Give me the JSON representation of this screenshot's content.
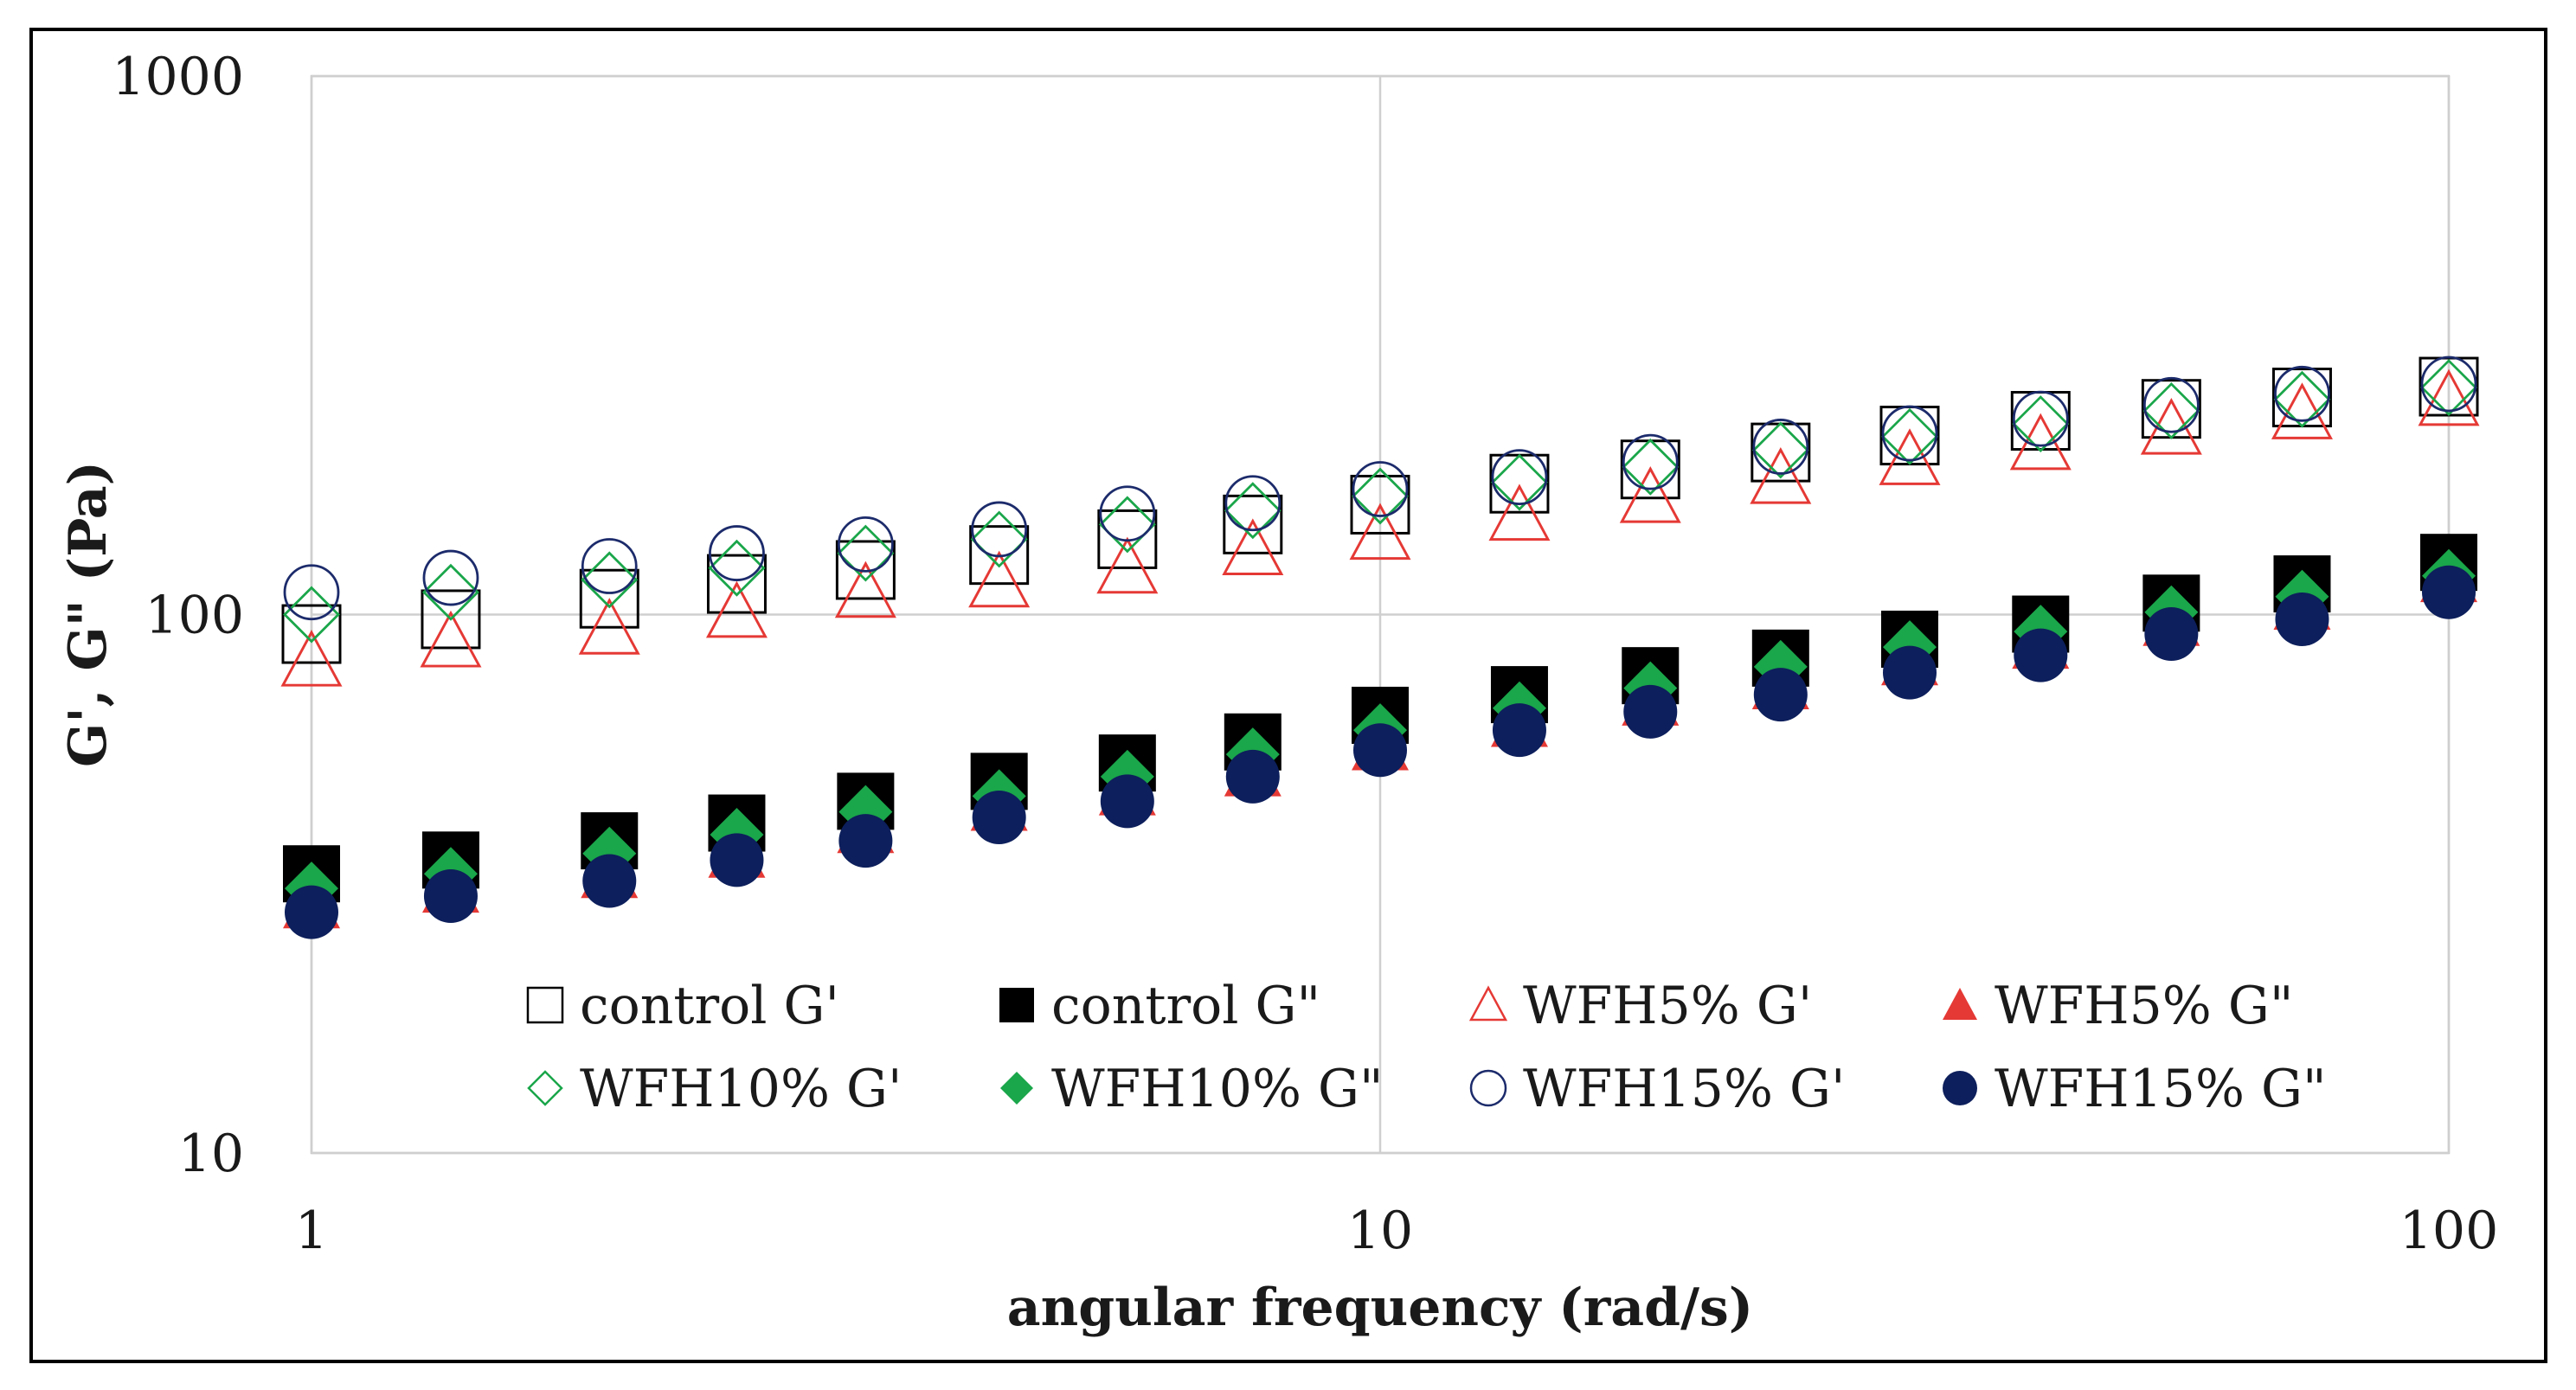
{
  "chart_data": {
    "type": "scatter",
    "title": "",
    "xlabel": "angular frequency (rad/s)",
    "ylabel": "G', G\" (Pa)",
    "xscale": "log",
    "yscale": "log",
    "xlim": [
      1,
      100
    ],
    "ylim": [
      10,
      1000
    ],
    "x_ticks": [
      {
        "value": 1,
        "label": "1"
      },
      {
        "value": 10,
        "label": "10"
      },
      {
        "value": 100,
        "label": "100"
      }
    ],
    "y_ticks": [
      {
        "value": 10,
        "label": "10"
      },
      {
        "value": 100,
        "label": "100"
      },
      {
        "value": 1000,
        "label": "1000"
      }
    ],
    "grid": true,
    "legend": "bottom",
    "x": [
      1.0,
      1.35,
      1.9,
      2.5,
      3.3,
      4.4,
      5.8,
      7.6,
      10.0,
      13.5,
      17.9,
      23.7,
      31.3,
      41.5,
      55.0,
      72.9,
      100.0
    ],
    "series": [
      {
        "name": "control G'",
        "marker": "open-square",
        "color": "#000000",
        "values": [
          92,
          98,
          107,
          114,
          121,
          129,
          138,
          147,
          160,
          175,
          186,
          200,
          215,
          229,
          241,
          253,
          265
        ]
      },
      {
        "name": "control G\"",
        "marker": "filled-square",
        "color": "#000000",
        "values": [
          33,
          35,
          38,
          41,
          45,
          49,
          53,
          58,
          65,
          71,
          77,
          83,
          90,
          96,
          105,
          114,
          125
        ]
      },
      {
        "name": "WFH5% G'",
        "marker": "open-triangle",
        "color": "#e53935",
        "values": [
          82,
          89,
          94,
          101,
          110,
          115,
          122,
          132,
          141,
          153,
          165,
          179,
          194,
          207,
          221,
          236,
          250
        ]
      },
      {
        "name": "WFH5% G\"",
        "marker": "filled-triangle",
        "color": "#e53935",
        "values": [
          29,
          31,
          33,
          36,
          40,
          44,
          47,
          51,
          57,
          63,
          69,
          74,
          82,
          88,
          97,
          104,
          117
        ]
      },
      {
        "name": "WFH10% G'",
        "marker": "open-diamond",
        "color": "#1aa64a",
        "values": [
          100,
          110,
          116,
          122,
          130,
          138,
          147,
          156,
          166,
          176,
          188,
          202,
          214,
          226,
          239,
          251,
          264
        ]
      },
      {
        "name": "WFH10% G\"",
        "marker": "filled-diamond",
        "color": "#1aa64a",
        "values": [
          31,
          33,
          36,
          39,
          43,
          46,
          50,
          55,
          61,
          67,
          73,
          80,
          87,
          93,
          101,
          108,
          118
        ]
      },
      {
        "name": "WFH15% G'",
        "marker": "open-circle",
        "color": "#1c2b6b",
        "values": [
          110,
          117,
          123,
          130,
          135,
          144,
          154,
          161,
          171,
          180,
          192,
          205,
          217,
          231,
          245,
          257,
          268
        ]
      },
      {
        "name": "WFH15% G\"",
        "marker": "filled-circle",
        "color": "#0d1f5c",
        "values": [
          28,
          30,
          32,
          35,
          38,
          42,
          45,
          50,
          56,
          61,
          66,
          71,
          78,
          84,
          92,
          98,
          110
        ]
      }
    ]
  }
}
